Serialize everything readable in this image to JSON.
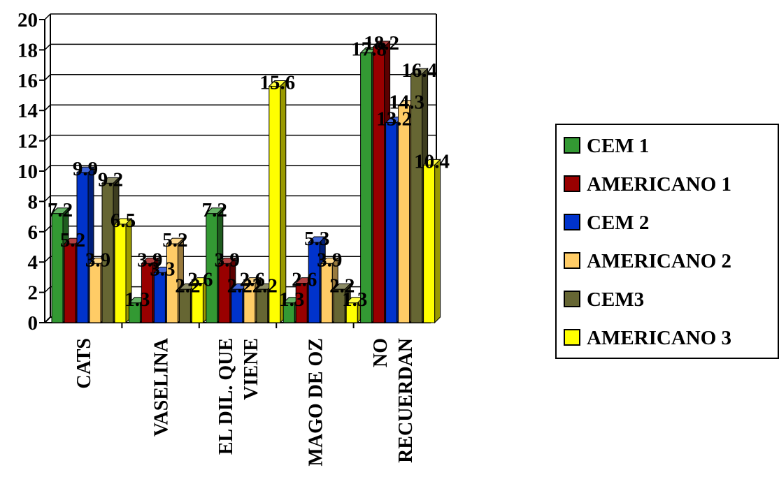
{
  "chart_data": {
    "type": "bar",
    "style": "3d-clustered-column",
    "title": "",
    "xlabel": "",
    "ylabel": "",
    "ylim": [
      0,
      20
    ],
    "yticks": [
      0,
      2,
      4,
      6,
      8,
      10,
      12,
      14,
      16,
      18,
      20
    ],
    "grid": true,
    "legend_position": "right",
    "categories": [
      [
        "CATS"
      ],
      [
        "VASELINA"
      ],
      [
        "EL DIL. QUE",
        "VIENE"
      ],
      [
        "MAGO DE OZ"
      ],
      [
        "NO",
        "RECUERDAN"
      ]
    ],
    "series": [
      {
        "name": "CEM 1",
        "color": "#339933",
        "values": [
          7.2,
          1.3,
          7.2,
          1.3,
          17.8
        ]
      },
      {
        "name": "AMERICANO 1",
        "color": "#990000",
        "values": [
          5.2,
          3.9,
          3.9,
          2.6,
          18.2
        ]
      },
      {
        "name": "CEM 2",
        "color": "#0033cc",
        "values": [
          9.9,
          3.3,
          2.2,
          5.3,
          13.2
        ]
      },
      {
        "name": "AMERICANO 2",
        "color": "#ffcc66",
        "values": [
          3.9,
          5.2,
          2.6,
          3.9,
          14.3
        ]
      },
      {
        "name": "CEM3",
        "color": "#666633",
        "values": [
          9.2,
          2.2,
          2.2,
          2.2,
          16.4
        ]
      },
      {
        "name": "AMERICANO 3",
        "color": "#ffff00",
        "values": [
          6.5,
          2.6,
          15.6,
          1.3,
          10.4
        ]
      }
    ],
    "data_labels": [
      [
        "7.2",
        "1.3",
        "7.2",
        "1.3",
        "17.8"
      ],
      [
        "5.2",
        "3.9",
        "3.9",
        "2.6",
        "18.2"
      ],
      [
        "9.9",
        "3.3",
        "2.2",
        "5.3",
        "13.2"
      ],
      [
        "3.9",
        "5.2",
        "2.6",
        "3.9",
        "14.3"
      ],
      [
        "9.2",
        "2.2",
        "2.2",
        "2.2",
        "16.4"
      ],
      [
        "6.5",
        "2.6",
        "15.6",
        "1.3",
        "10.4"
      ]
    ]
  }
}
